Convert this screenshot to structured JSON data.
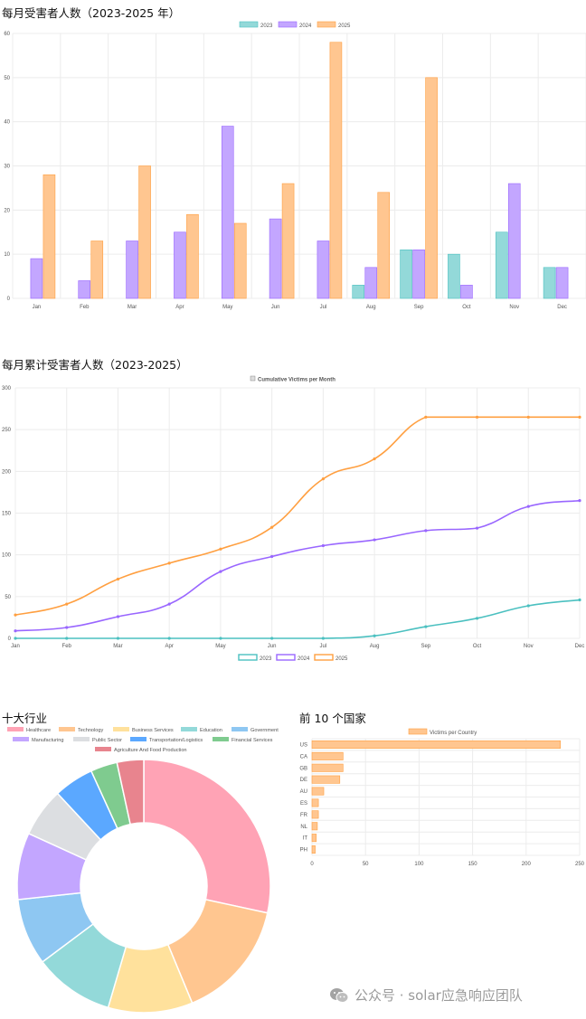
{
  "sections": {
    "monthly_title": "每月受害者人数（2023-2025 年）",
    "cumulative_title": "每月累计受害者人数（2023-2025）",
    "industry_title": "十大行业",
    "country_title": "前 10 个国家"
  },
  "watermark": {
    "text": "公众号 · solar应急响应团队",
    "icon": "wechat-icon"
  },
  "colors": {
    "y2023": "#4BC0C0",
    "y2023_fill": "#93D9D9",
    "y2024": "#9966FF",
    "y2024_fill": "#C3A6FF",
    "y2025": "#FF9F40",
    "y2025_fill": "#FFC690",
    "grid": "#ececec",
    "axis_text": "#555555"
  },
  "chart_data": [
    {
      "id": "monthly",
      "type": "bar",
      "categories": [
        "Jan",
        "Feb",
        "Mar",
        "Apr",
        "May",
        "Jun",
        "Jul",
        "Aug",
        "Sep",
        "Oct",
        "Nov",
        "Dec"
      ],
      "series": [
        {
          "name": "2023",
          "values": [
            0,
            0,
            0,
            0,
            0,
            0,
            0,
            3,
            11,
            10,
            15,
            7
          ]
        },
        {
          "name": "2024",
          "values": [
            9,
            4,
            13,
            15,
            39,
            18,
            13,
            7,
            11,
            3,
            26,
            7
          ]
        },
        {
          "name": "2025",
          "values": [
            28,
            13,
            30,
            19,
            17,
            26,
            58,
            24,
            50,
            0,
            0,
            0
          ]
        }
      ],
      "ylim": [
        0,
        60
      ],
      "yticks": [
        0,
        10,
        20,
        30,
        40,
        50,
        60
      ],
      "legend": "top",
      "grid": true
    },
    {
      "id": "cumulative",
      "type": "line",
      "title": "Cumulative Victims per Month",
      "categories": [
        "Jan",
        "Feb",
        "Mar",
        "Apr",
        "May",
        "Jun",
        "Jul",
        "Aug",
        "Sep",
        "Oct",
        "Nov",
        "Dec"
      ],
      "series": [
        {
          "name": "2023",
          "values": [
            0,
            0,
            0,
            0,
            0,
            0,
            0,
            3,
            14,
            24,
            39,
            46
          ]
        },
        {
          "name": "2024",
          "values": [
            9,
            13,
            26,
            41,
            80,
            98,
            111,
            118,
            129,
            132,
            158,
            165
          ]
        },
        {
          "name": "2025",
          "values": [
            28,
            41,
            71,
            90,
            107,
            133,
            191,
            215,
            265,
            265,
            265,
            265
          ]
        }
      ],
      "ylim": [
        0,
        300
      ],
      "yticks": [
        0,
        50,
        100,
        150,
        200,
        250,
        300
      ],
      "legend": "bottom",
      "grid": true
    },
    {
      "id": "industry",
      "type": "pie",
      "categories": [
        "Healthcare",
        "Technology",
        "Business Services",
        "Education",
        "Government",
        "Manufacturing",
        "Public Sector",
        "Transportation/Logistics",
        "Financial Services",
        "Agriculture And Food Production"
      ],
      "values": [
        50,
        27,
        19,
        18,
        15,
        15,
        11,
        9,
        6,
        6
      ],
      "colors": [
        "#FFA3B5",
        "#FFC690",
        "#FFE19C",
        "#93D9D9",
        "#8EC7F2",
        "#C3A6FF",
        "#DCDEE1",
        "#5BA8FF",
        "#7FCB8F",
        "#E8848E"
      ],
      "legend": "top"
    },
    {
      "id": "country",
      "type": "bar",
      "orientation": "horizontal",
      "series_name": "Victims per Country",
      "categories": [
        "US",
        "CA",
        "GB",
        "DE",
        "AU",
        "ES",
        "FR",
        "NL",
        "IT",
        "PH"
      ],
      "values": [
        232,
        29,
        29,
        26,
        11,
        6,
        6,
        5,
        4,
        3
      ],
      "xlim": [
        0,
        250
      ],
      "xticks": [
        0,
        50,
        100,
        150,
        200,
        250
      ],
      "legend": "top",
      "grid": true
    }
  ]
}
